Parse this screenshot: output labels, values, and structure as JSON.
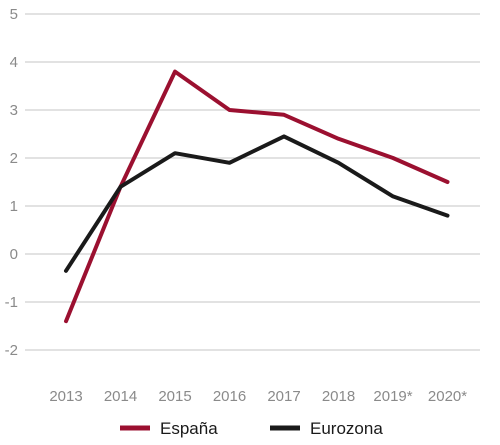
{
  "chart_data": {
    "type": "line",
    "x": [
      "2013",
      "2014",
      "2015",
      "2016",
      "2017",
      "2018",
      "2019*",
      "2020*"
    ],
    "series": [
      {
        "name": "España",
        "color": "#9b1030",
        "values": [
          -1.4,
          1.4,
          3.8,
          3.0,
          2.9,
          2.4,
          2.0,
          1.5
        ]
      },
      {
        "name": "Eurozona",
        "color": "#1a1a1a",
        "values": [
          -0.35,
          1.4,
          2.1,
          1.9,
          2.45,
          1.9,
          1.2,
          0.8
        ]
      }
    ],
    "y_ticks": [
      "5",
      "4",
      "3",
      "2",
      "1",
      "0",
      "-1",
      "-2"
    ],
    "ylim": [
      -2,
      5
    ],
    "grid": true,
    "legend": "bottom"
  }
}
